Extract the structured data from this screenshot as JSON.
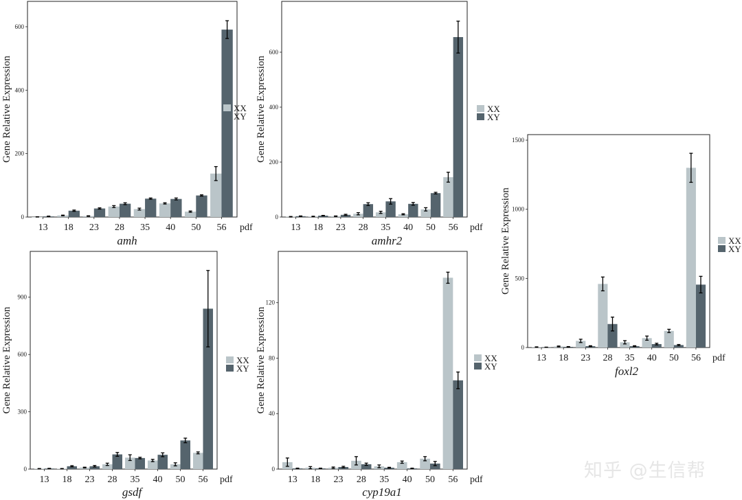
{
  "colors": {
    "XX": "#bac5c9",
    "XY": "#55646d"
  },
  "watermark": "知乎 @生信帮",
  "chart_data": [
    {
      "type": "bar",
      "gene": "amh",
      "ylabel": "Gene Relative Expression",
      "x_unit": "pdf",
      "categories": [
        "13",
        "18",
        "23",
        "28",
        "35",
        "40",
        "50",
        "56"
      ],
      "yticks": [
        0,
        200,
        400,
        600
      ],
      "ylim": [
        0,
        680
      ],
      "legend": [
        "XX",
        "XY"
      ],
      "series": [
        {
          "name": "XX",
          "values": [
            0,
            5,
            3,
            33,
            25,
            43,
            17,
            137
          ],
          "errors": [
            1,
            1,
            1,
            3,
            3,
            2,
            2,
            22
          ]
        },
        {
          "name": "XY",
          "values": [
            2,
            20,
            27,
            42,
            58,
            57,
            68,
            591
          ],
          "errors": [
            1,
            2,
            2,
            3,
            2,
            3,
            2,
            28
          ]
        }
      ]
    },
    {
      "type": "bar",
      "gene": "amhr2",
      "ylabel": "Gene Relative Expression",
      "x_unit": "pdf",
      "categories": [
        "13",
        "18",
        "23",
        "28",
        "35",
        "40",
        "50",
        "56"
      ],
      "yticks": [
        0,
        200,
        400,
        600
      ],
      "ylim": [
        0,
        785
      ],
      "legend": [
        "XX",
        "XY"
      ],
      "series": [
        {
          "name": "XX",
          "values": [
            1,
            2,
            3,
            12,
            17,
            10,
            28,
            145
          ],
          "errors": [
            1,
            1,
            1,
            4,
            4,
            2,
            6,
            18
          ]
        },
        {
          "name": "XY",
          "values": [
            3,
            5,
            8,
            47,
            57,
            48,
            87,
            655
          ],
          "errors": [
            1,
            1,
            2,
            5,
            10,
            5,
            3,
            58
          ]
        }
      ]
    },
    {
      "type": "bar",
      "gene": "foxl2",
      "ylabel": "Gene Relative Expression",
      "x_unit": "pdf",
      "categories": [
        "13",
        "18",
        "23",
        "28",
        "35",
        "40",
        "50",
        "56"
      ],
      "yticks": [
        0,
        500,
        1000,
        1500
      ],
      "ylim": [
        0,
        1540
      ],
      "legend": [
        "XX",
        "XY"
      ],
      "series": [
        {
          "name": "XX",
          "values": [
            3,
            8,
            48,
            460,
            38,
            68,
            120,
            1300
          ],
          "errors": [
            2,
            3,
            12,
            50,
            12,
            15,
            12,
            105
          ]
        },
        {
          "name": "XY",
          "values": [
            2,
            5,
            10,
            170,
            10,
            25,
            18,
            455
          ],
          "errors": [
            1,
            2,
            3,
            50,
            3,
            6,
            4,
            60
          ]
        }
      ]
    },
    {
      "type": "bar",
      "gene": "gsdf",
      "ylabel": "Gene Relative Expression",
      "x_unit": "pdf",
      "categories": [
        "13",
        "18",
        "23",
        "28",
        "35",
        "40",
        "50",
        "56"
      ],
      "yticks": [
        0,
        300,
        600,
        900
      ],
      "ylim": [
        0,
        1140
      ],
      "legend": [
        "XX",
        "XY"
      ],
      "series": [
        {
          "name": "XX",
          "values": [
            2,
            2,
            8,
            25,
            60,
            45,
            25,
            85
          ],
          "errors": [
            1,
            1,
            2,
            6,
            15,
            6,
            8,
            5
          ]
        },
        {
          "name": "XY",
          "values": [
            3,
            15,
            15,
            77,
            58,
            75,
            150,
            840
          ],
          "errors": [
            1,
            3,
            4,
            10,
            4,
            10,
            12,
            200
          ]
        }
      ]
    },
    {
      "type": "bar",
      "gene": "cyp19a1",
      "ylabel": "Gene Relative Expression",
      "x_unit": "pdf",
      "categories": [
        "13",
        "18",
        "23",
        "28",
        "35",
        "40",
        "50",
        "56"
      ],
      "yticks": [
        0,
        40,
        80,
        120
      ],
      "ylim": [
        0,
        157
      ],
      "legend": [
        "XX",
        "XY"
      ],
      "series": [
        {
          "name": "XX",
          "values": [
            5,
            1,
            1,
            6,
            2,
            5,
            7.5,
            138
          ],
          "errors": [
            3,
            0.8,
            0.5,
            3,
            1,
            0.8,
            1.5,
            4
          ]
        },
        {
          "name": "XY",
          "values": [
            0.5,
            0.5,
            1.5,
            3.5,
            1,
            0.5,
            4,
            64
          ],
          "errors": [
            0.2,
            0.2,
            0.5,
            0.8,
            0.3,
            0.2,
            1.5,
            6
          ]
        }
      ]
    }
  ]
}
